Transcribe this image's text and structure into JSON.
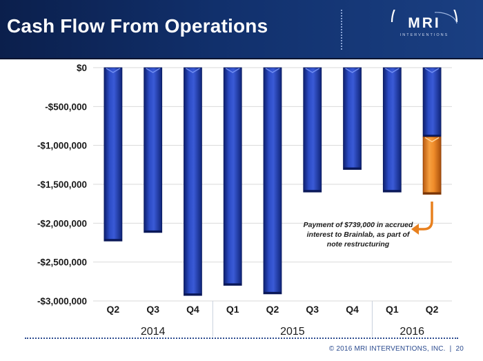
{
  "header": {
    "title": "Cash Flow From Operations",
    "logo_text": "MRI",
    "logo_subtext": "INTERVENTIONS"
  },
  "chart_data": {
    "type": "bar",
    "title": "Cash Flow From Operations",
    "categories": [
      "Q2",
      "Q3",
      "Q4",
      "Q1",
      "Q2",
      "Q3",
      "Q4",
      "Q1",
      "Q2"
    ],
    "groups": [
      {
        "label": "2014",
        "count": 3
      },
      {
        "label": "2015",
        "count": 4
      },
      {
        "label": "2016",
        "count": 2
      }
    ],
    "series": [
      {
        "name": "Cash flow from operations",
        "color": "#1e3ca6",
        "values": [
          -2230000,
          -2120000,
          -2930000,
          -2800000,
          -2910000,
          -1600000,
          -1310000,
          -1600000,
          -890000
        ]
      },
      {
        "name": "Payment of accrued interest to Brainlab",
        "color": "#e8801e",
        "values": [
          0,
          0,
          0,
          0,
          0,
          0,
          0,
          0,
          -739000
        ]
      }
    ],
    "ylim": [
      -3000000,
      0
    ],
    "yticks": [
      0,
      -500000,
      -1000000,
      -1500000,
      -2000000,
      -2500000,
      -3000000
    ],
    "ytick_labels": [
      "$0",
      "-$500,000",
      "-$1,000,000",
      "-$1,500,000",
      "-$2,000,000",
      "-$2,500,000",
      "-$3,000,000"
    ],
    "annotation": {
      "lines": [
        "Payment of $739,000 in accrued",
        "interest to Brainlab, as part of",
        "note restructuring"
      ],
      "arrow_color": "#e8801e"
    },
    "xlabel": "",
    "ylabel": "",
    "grid": true
  },
  "footer": {
    "copyright": "© 2016 MRI INTERVENTIONS, INC.",
    "separator": "|",
    "page_number": "20"
  }
}
